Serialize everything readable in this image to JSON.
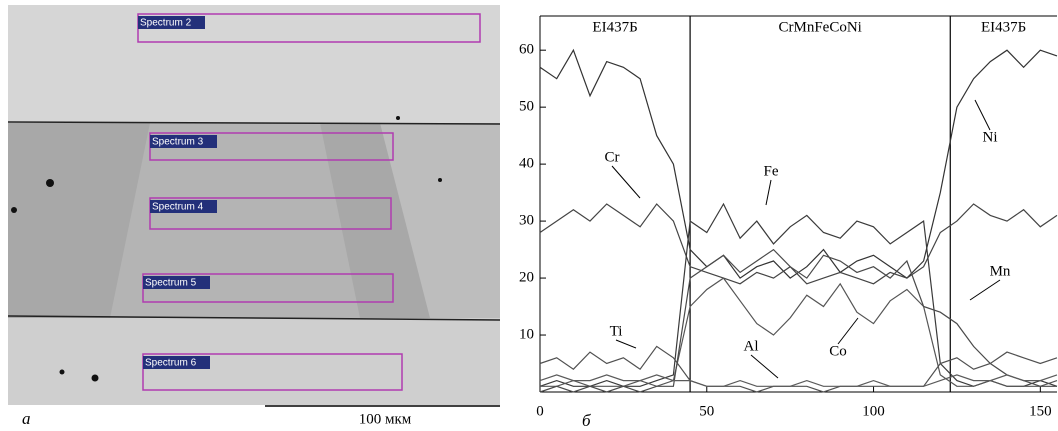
{
  "micrograph": {
    "spectra": [
      "Spectrum 2",
      "Spectrum 3",
      "Spectrum 4",
      "Spectrum 5",
      "Spectrum 6"
    ],
    "scale_label": "100 мкм",
    "panel_label": "a"
  },
  "chart_data": {
    "type": "line",
    "panel_label": "б",
    "x": [
      0,
      5,
      10,
      15,
      20,
      25,
      30,
      35,
      40,
      45,
      50,
      55,
      60,
      65,
      70,
      75,
      80,
      85,
      90,
      95,
      100,
      105,
      110,
      115,
      120,
      125,
      130,
      135,
      140,
      145,
      150,
      155
    ],
    "series": [
      {
        "name": "Ni",
        "color": "#333333",
        "values": [
          57,
          55,
          60,
          52,
          58,
          57,
          55,
          45,
          40,
          25,
          22,
          24,
          20,
          22,
          23,
          20,
          22,
          25,
          21,
          23,
          24,
          22,
          20,
          23,
          35,
          50,
          55,
          58,
          60,
          57,
          60,
          59
        ]
      },
      {
        "name": "Cr",
        "color": "#444444",
        "values": [
          28,
          30,
          32,
          30,
          33,
          31,
          29,
          33,
          30,
          22,
          21,
          20,
          19,
          21,
          20,
          22,
          19,
          20,
          21,
          20,
          19,
          21,
          20,
          22,
          28,
          30,
          33,
          31,
          30,
          32,
          29,
          31
        ]
      },
      {
        "name": "Fe",
        "color": "#3a3a3a",
        "values": [
          1,
          2,
          1,
          1,
          2,
          1,
          1,
          2,
          3,
          30,
          28,
          33,
          27,
          30,
          26,
          29,
          31,
          28,
          27,
          30,
          29,
          26,
          28,
          30,
          5,
          2,
          1,
          2,
          1,
          1,
          2,
          1
        ]
      },
      {
        "name": "Co",
        "color": "#555555",
        "values": [
          1,
          1,
          2,
          1,
          1,
          1,
          2,
          1,
          2,
          15,
          18,
          20,
          16,
          12,
          10,
          13,
          17,
          15,
          19,
          14,
          12,
          16,
          18,
          15,
          3,
          1,
          1,
          2,
          1,
          1,
          1,
          2
        ]
      },
      {
        "name": "Mn",
        "color": "#4a4a4a",
        "values": [
          0,
          1,
          0,
          1,
          0,
          1,
          0,
          1,
          1,
          20,
          22,
          24,
          21,
          23,
          25,
          22,
          20,
          24,
          23,
          21,
          22,
          20,
          23,
          15,
          14,
          12,
          8,
          5,
          3,
          2,
          1,
          1
        ]
      },
      {
        "name": "Ti",
        "color": "#505050",
        "values": [
          5,
          6,
          4,
          7,
          5,
          6,
          4,
          8,
          6,
          2,
          1,
          1,
          1,
          0,
          1,
          1,
          1,
          0,
          1,
          1,
          1,
          1,
          1,
          1,
          5,
          6,
          4,
          5,
          7,
          6,
          5,
          6
        ]
      },
      {
        "name": "Al",
        "color": "#5a5a5a",
        "values": [
          2,
          3,
          2,
          2,
          3,
          2,
          2,
          3,
          2,
          2,
          1,
          1,
          2,
          1,
          1,
          1,
          2,
          1,
          1,
          1,
          2,
          1,
          1,
          1,
          2,
          3,
          2,
          2,
          3,
          2,
          2,
          3
        ]
      }
    ],
    "regions": [
      {
        "label": "EI437Б",
        "end": 45
      },
      {
        "label": "CrMnFeCoNi",
        "end": 123
      },
      {
        "label": "EI437Б"
      }
    ],
    "xlim": [
      0,
      155
    ],
    "ylim": [
      0,
      66
    ],
    "xticks": [
      0,
      50,
      100,
      150
    ],
    "yticks": [
      10,
      20,
      30,
      40,
      50,
      60
    ]
  }
}
